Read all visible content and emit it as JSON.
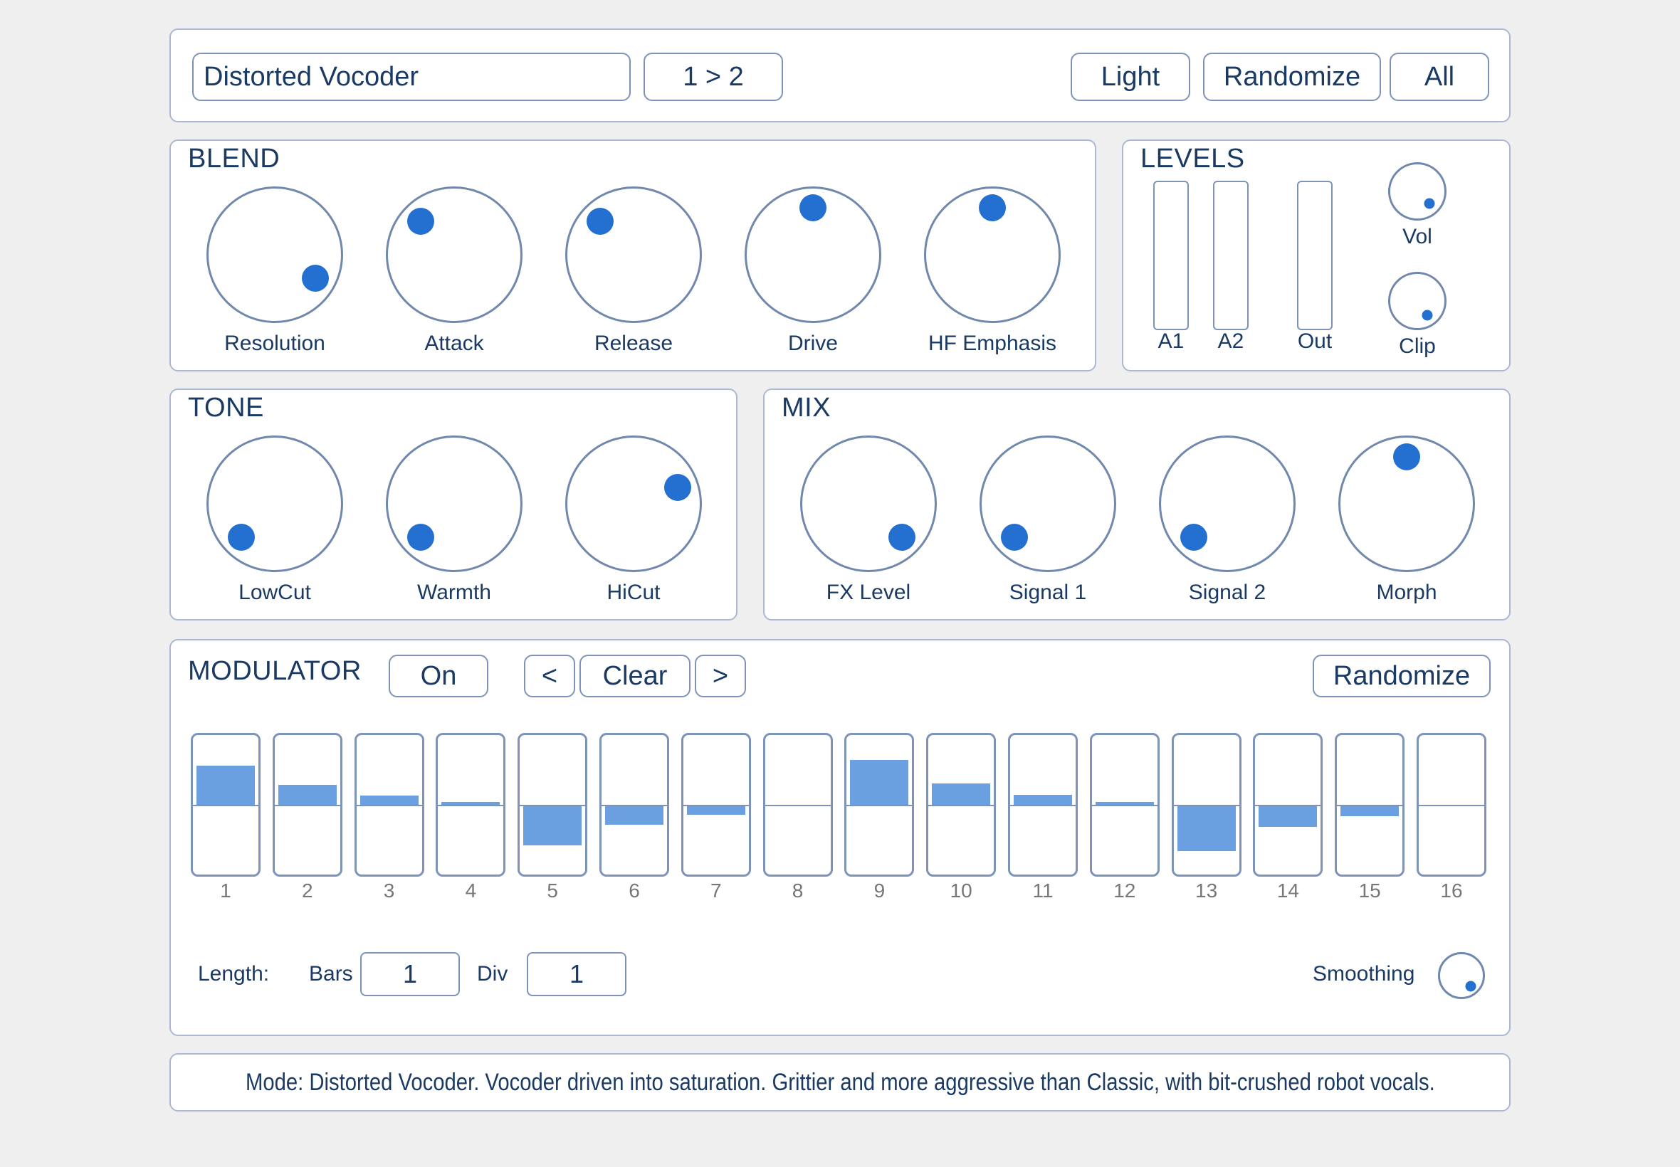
{
  "header": {
    "preset_name": "Distorted Vocoder",
    "routing": "1 > 2",
    "theme_button": "Light",
    "randomize_button": "Randomize",
    "all_button": "All"
  },
  "blend": {
    "title": "BLEND",
    "knobs": [
      {
        "label": "Resolution",
        "angle": 120
      },
      {
        "label": "Attack",
        "angle": -45
      },
      {
        "label": "Release",
        "angle": -45
      },
      {
        "label": "Drive",
        "angle": 0
      },
      {
        "label": "HF Emphasis",
        "angle": 0
      }
    ]
  },
  "levels": {
    "title": "LEVELS",
    "meters": [
      {
        "label": "A1",
        "value": 0
      },
      {
        "label": "A2",
        "value": 0
      },
      {
        "label": "Out",
        "value": 0
      }
    ],
    "vol_label": "Vol",
    "clip_label": "Clip",
    "vol_angle": 135,
    "clip_angle": 145
  },
  "tone": {
    "title": "TONE",
    "knobs": [
      {
        "label": "LowCut",
        "angle": -135
      },
      {
        "label": "Warmth",
        "angle": -135
      },
      {
        "label": "HiCut",
        "angle": 70
      }
    ]
  },
  "mix": {
    "title": "MIX",
    "knobs": [
      {
        "label": "FX Level",
        "angle": 135
      },
      {
        "label": "Signal 1",
        "angle": -135
      },
      {
        "label": "Signal 2",
        "angle": -135
      },
      {
        "label": "Morph",
        "angle": 0
      }
    ]
  },
  "modulator": {
    "title": "MODULATOR",
    "on_button": "On",
    "prev_button": "<",
    "clear_button": "Clear",
    "next_button": ">",
    "randomize_button": "Randomize",
    "steps": [
      {
        "n": "1",
        "value": 0.6
      },
      {
        "n": "2",
        "value": 0.3
      },
      {
        "n": "3",
        "value": 0.14
      },
      {
        "n": "4",
        "value": 0.04
      },
      {
        "n": "5",
        "value": -0.6
      },
      {
        "n": "6",
        "value": -0.28
      },
      {
        "n": "7",
        "value": -0.13
      },
      {
        "n": "8",
        "value": 0.0
      },
      {
        "n": "9",
        "value": 0.68
      },
      {
        "n": "10",
        "value": 0.33
      },
      {
        "n": "11",
        "value": 0.15
      },
      {
        "n": "12",
        "value": 0.04
      },
      {
        "n": "13",
        "value": -0.68
      },
      {
        "n": "14",
        "value": -0.32
      },
      {
        "n": "15",
        "value": -0.15
      },
      {
        "n": "16",
        "value": 0.0
      }
    ],
    "length_label": "Length:",
    "bars_label": "Bars",
    "bars_value": "1",
    "div_label": "Div",
    "div_value": "1",
    "smoothing_label": "Smoothing",
    "smoothing_angle": 140
  },
  "description": "Mode: Distorted Vocoder. Vocoder driven into saturation. Grittier and more aggressive than Classic, with bit-crushed robot vocals.",
  "colors": {
    "accent": "#2470d0",
    "step_fill": "#6a9fe0",
    "border": "#7d93b8",
    "text": "#1a3a63"
  }
}
